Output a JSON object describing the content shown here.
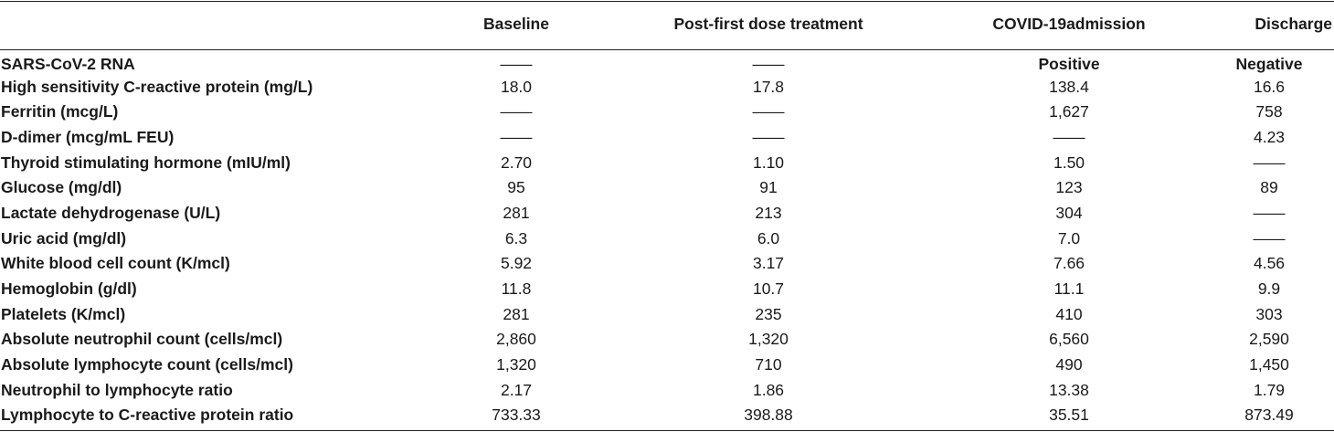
{
  "table": {
    "headers": [
      "",
      "Baseline",
      "Post-first dose treatment",
      "COVID-19admission",
      "Discharge"
    ],
    "rows": [
      {
        "label": "SARS-CoV-2 RNA",
        "values": [
          "——",
          "——",
          "Positive",
          "Negative"
        ],
        "bold_values": true
      },
      {
        "label": "High sensitivity C-reactive protein (mg/L)",
        "values": [
          "18.0",
          "17.8",
          "138.4",
          "16.6"
        ]
      },
      {
        "label": "Ferritin (mcg/L)",
        "values": [
          "——",
          "——",
          "1,627",
          "758"
        ]
      },
      {
        "label": "D-dimer (mcg/mL FEU)",
        "values": [
          "——",
          "——",
          "——",
          "4.23"
        ]
      },
      {
        "label": "Thyroid stimulating hormone (mIU/ml)",
        "values": [
          "2.70",
          "1.10",
          "1.50",
          "——"
        ]
      },
      {
        "label": "Glucose (mg/dl)",
        "values": [
          "95",
          "91",
          "123",
          "89"
        ]
      },
      {
        "label": "Lactate dehydrogenase (U/L)",
        "values": [
          "281",
          "213",
          "304",
          "——"
        ]
      },
      {
        "label": "Uric acid (mg/dl)",
        "values": [
          "6.3",
          "6.0",
          "7.0",
          "——"
        ]
      },
      {
        "label": "White blood cell count (K/mcl)",
        "values": [
          "5.92",
          "3.17",
          "7.66",
          "4.56"
        ]
      },
      {
        "label": "Hemoglobin (g/dl)",
        "values": [
          "11.8",
          "10.7",
          "11.1",
          "9.9"
        ]
      },
      {
        "label": "Platelets (K/mcl)",
        "values": [
          "281",
          "235",
          "410",
          "303"
        ]
      },
      {
        "label": "Absolute neutrophil count (cells/mcl)",
        "values": [
          "2,860",
          "1,320",
          "6,560",
          "2,590"
        ]
      },
      {
        "label": "Absolute lymphocyte count (cells/mcl)",
        "values": [
          "1,320",
          "710",
          "490",
          "1,450"
        ]
      },
      {
        "label": "Neutrophil to lymphocyte ratio",
        "values": [
          "2.17",
          "1.86",
          "13.38",
          "1.79"
        ]
      },
      {
        "label": "Lymphocyte to C-reactive protein ratio",
        "values": [
          "733.33",
          "398.88",
          "35.51",
          "873.49"
        ]
      }
    ]
  }
}
